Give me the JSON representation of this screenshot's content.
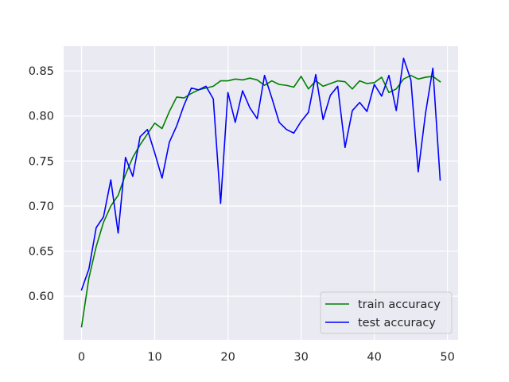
{
  "chart_data": {
    "type": "line",
    "title": "",
    "xlabel": "",
    "ylabel": "",
    "xlim": [
      -2.45,
      51.45
    ],
    "ylim": [
      0.5515,
      0.8775
    ],
    "xticks": [
      0,
      10,
      20,
      30,
      40,
      50
    ],
    "yticks": [
      0.6,
      0.65,
      0.7,
      0.75,
      0.8,
      0.85
    ],
    "xtick_labels": [
      "0",
      "10",
      "20",
      "30",
      "40",
      "50"
    ],
    "ytick_labels": [
      "0.60",
      "0.65",
      "0.70",
      "0.75",
      "0.80",
      "0.85"
    ],
    "grid": true,
    "legend_position": "lower-right",
    "x": [
      0,
      1,
      2,
      3,
      4,
      5,
      6,
      7,
      8,
      9,
      10,
      11,
      12,
      13,
      14,
      15,
      16,
      17,
      18,
      19,
      20,
      21,
      22,
      23,
      24,
      25,
      26,
      27,
      28,
      29,
      30,
      31,
      32,
      33,
      34,
      35,
      36,
      37,
      38,
      39,
      40,
      41,
      42,
      43,
      44,
      45,
      46,
      47,
      48,
      49
    ],
    "series": [
      {
        "name": "train accuracy",
        "color": "#008000",
        "values": [
          0.566,
          0.62,
          0.655,
          0.682,
          0.7,
          0.712,
          0.735,
          0.754,
          0.768,
          0.78,
          0.792,
          0.786,
          0.805,
          0.821,
          0.82,
          0.825,
          0.829,
          0.831,
          0.833,
          0.839,
          0.839,
          0.841,
          0.84,
          0.842,
          0.84,
          0.834,
          0.839,
          0.835,
          0.834,
          0.832,
          0.844,
          0.83,
          0.839,
          0.833,
          0.836,
          0.839,
          0.838,
          0.83,
          0.839,
          0.836,
          0.837,
          0.843,
          0.826,
          0.83,
          0.841,
          0.845,
          0.841,
          0.843,
          0.844,
          0.838
        ]
      },
      {
        "name": "test accuracy",
        "color": "#0000ff",
        "values": [
          0.607,
          0.63,
          0.676,
          0.688,
          0.729,
          0.67,
          0.754,
          0.733,
          0.777,
          0.785,
          0.759,
          0.731,
          0.771,
          0.789,
          0.812,
          0.831,
          0.829,
          0.833,
          0.819,
          0.703,
          0.826,
          0.793,
          0.828,
          0.809,
          0.797,
          0.845,
          0.82,
          0.793,
          0.785,
          0.781,
          0.794,
          0.804,
          0.846,
          0.796,
          0.823,
          0.833,
          0.765,
          0.806,
          0.815,
          0.805,
          0.835,
          0.822,
          0.845,
          0.806,
          0.864,
          0.84,
          0.738,
          0.803,
          0.853,
          0.729
        ]
      }
    ]
  }
}
